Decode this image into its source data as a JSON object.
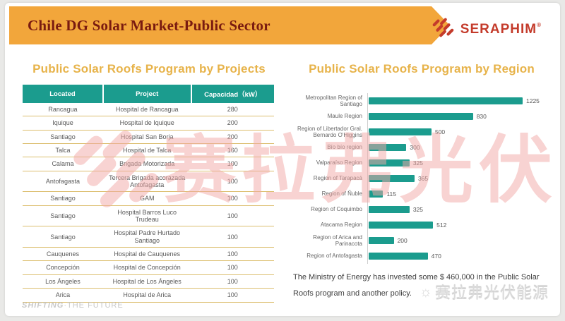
{
  "banner": {
    "title": "Chile DG Solar Market-Public Sector"
  },
  "logo": {
    "brand": "SERAPHIM",
    "registered_mark": "®"
  },
  "table_section": {
    "title": "Public Solar Roofs Program by Projects",
    "columns": [
      "Located",
      "Project",
      "Capacidad（kW）"
    ],
    "rows": [
      [
        "Rancagua",
        "Hospital de Rancagua",
        "280"
      ],
      [
        "Iquique",
        "Hospital de Iquique",
        "200"
      ],
      [
        "Santiago",
        "Hospital San Borja",
        "200"
      ],
      [
        "Talca",
        "Hospital de Talca",
        "160"
      ],
      [
        "Calama",
        "Brigada Motorizada",
        "100"
      ],
      [
        "Antofagasta",
        "Tercera Brigada acorazada Antofagasta",
        "100"
      ],
      [
        "Santiago",
        "GAM",
        "100"
      ],
      [
        "Santiago",
        "Hospital Barros Luco Trudeau",
        "100"
      ],
      [
        "Santiago",
        "Hospital Padre Hurtado Santiago",
        "100"
      ],
      [
        "Cauquenes",
        "Hospital de Cauquenes",
        "100"
      ],
      [
        "Concepción",
        "Hospital de Concepción",
        "100"
      ],
      [
        "Los Ángeles",
        "Hospital de Los Ángeles",
        "100"
      ],
      [
        "Arica",
        "Hospital de Arica",
        "100"
      ]
    ]
  },
  "chart_section": {
    "title": "Public Solar Roofs Program by Region",
    "note": "The Ministry of Energy has invested some $ 460,000 in the Public Solar Roofs program and another policy."
  },
  "chart_data": {
    "type": "bar",
    "orientation": "horizontal",
    "title": "Public Solar Roofs Program by Region",
    "categories": [
      "Metropolitan Region of Santiago",
      "Maule Region",
      "Region of Libertador Gral. Bernardo O'Higgins",
      "Bío bío region",
      "Valparaíso Region",
      "Region of Tarapacá",
      "Region of Ñuble",
      "Region of Coquimbo",
      "Atacama Region",
      "Region of Arica and Parinacota",
      "Region of Antofagasta"
    ],
    "values": [
      1225,
      830,
      500,
      300,
      325,
      365,
      115,
      325,
      512,
      200,
      470
    ],
    "xlim": [
      0,
      1225
    ],
    "bar_color": "#1B9C8E",
    "value_labels": true,
    "grid": false,
    "legend": false,
    "xlabel": "",
    "ylabel": ""
  },
  "footer": {
    "bold": "SHIFTING",
    "rest": "·THE FUTURE"
  },
  "watermarks": {
    "center_text": "赛拉弗光伏",
    "corner_sun": "☼",
    "corner_text": "赛拉弗光伏能源"
  },
  "colors": {
    "banner_bg": "#F2A63B",
    "banner_text": "#7A1B10",
    "section_title_gold": "#E7B34A",
    "teal": "#1B9C8E",
    "row_separator_gold": "#DCBE6E",
    "brand_red": "#C43B2B",
    "watermark_pink": "#F2A9A6"
  }
}
